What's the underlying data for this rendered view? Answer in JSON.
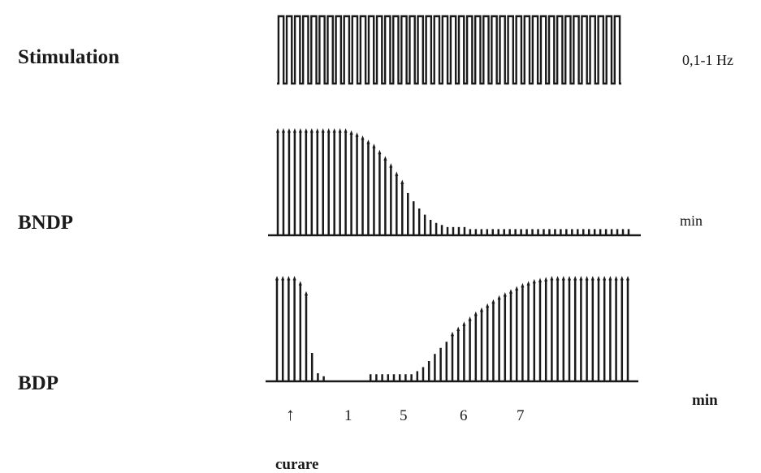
{
  "rows": {
    "stimulation": {
      "label": "Stimulation",
      "unit": "0,1-1 Hz",
      "pulse_count": 42
    },
    "bndp": {
      "label": "BNDP",
      "unit": "min",
      "amplitudes": [
        1,
        1,
        1,
        1,
        1,
        1,
        1,
        1,
        1,
        1,
        1,
        1,
        1,
        0.98,
        0.96,
        0.93,
        0.89,
        0.85,
        0.79,
        0.73,
        0.66,
        0.58,
        0.5,
        0.41,
        0.33,
        0.26,
        0.2,
        0.15,
        0.12,
        0.1,
        0.08,
        0.08,
        0.08,
        0.08,
        0.06,
        0.06,
        0.06,
        0.06,
        0.06,
        0.06,
        0.06,
        0.06,
        0.06,
        0.06,
        0.06,
        0.06,
        0.06,
        0.06,
        0.06,
        0.06,
        0.06,
        0.06,
        0.06,
        0.06,
        0.06,
        0.06,
        0.06,
        0.06,
        0.06,
        0.06,
        0.06,
        0.06,
        0.06
      ]
    },
    "bdp": {
      "label": "BDP",
      "unit": "min",
      "amplitudes": [
        1,
        1,
        1,
        1,
        0.95,
        0.85,
        0.28,
        0.08,
        0.05,
        null,
        null,
        null,
        null,
        null,
        null,
        null,
        0.07,
        0.07,
        0.07,
        0.07,
        0.07,
        0.07,
        0.07,
        0.07,
        0.1,
        0.14,
        0.2,
        0.27,
        0.33,
        0.39,
        0.45,
        0.5,
        0.55,
        0.6,
        0.65,
        0.69,
        0.73,
        0.77,
        0.81,
        0.84,
        0.87,
        0.9,
        0.93,
        0.95,
        0.97,
        0.98,
        0.99,
        1,
        1,
        1,
        1,
        1,
        1,
        1,
        1,
        1,
        1,
        1,
        1,
        1,
        1
      ]
    }
  },
  "time_axis": {
    "ticks": [
      "1",
      "5",
      "6",
      "7"
    ]
  },
  "marker": {
    "arrow": "↑",
    "label": "curare"
  },
  "colors": {
    "ink": "#1a1a1a",
    "background": "#ffffff"
  }
}
